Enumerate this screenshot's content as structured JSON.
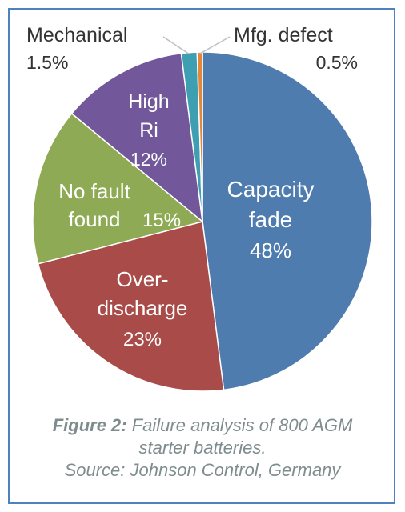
{
  "chart_data": {
    "type": "pie",
    "title": "",
    "slices": [
      {
        "label_lines": [
          "Capacity",
          "fade"
        ],
        "pct_text": "48%",
        "value": 48,
        "color": "#4f7cae"
      },
      {
        "label_lines": [
          "Over-",
          "discharge"
        ],
        "pct_text": "23%",
        "value": 23,
        "color": "#a94b48"
      },
      {
        "label_lines": [
          "No fault",
          "found"
        ],
        "pct_text": "15%",
        "value": 15,
        "color": "#8faa55"
      },
      {
        "label_lines": [
          "High",
          "Ri"
        ],
        "pct_text": "12%",
        "value": 12,
        "color": "#72589a"
      },
      {
        "label_lines": [
          "Mechanical"
        ],
        "pct_text": "1.5%",
        "value": 1.5,
        "color": "#3e9fb3"
      },
      {
        "label_lines": [
          "Mfg. defect"
        ],
        "pct_text": "0.5%",
        "value": 0.5,
        "color": "#e1883a"
      }
    ]
  },
  "caption": {
    "figure_label": "Figure 2:",
    "line1": " Failure analysis of 800 AGM",
    "line2": "starter batteries.",
    "line3": "Source: Johnson Control, Germany"
  }
}
